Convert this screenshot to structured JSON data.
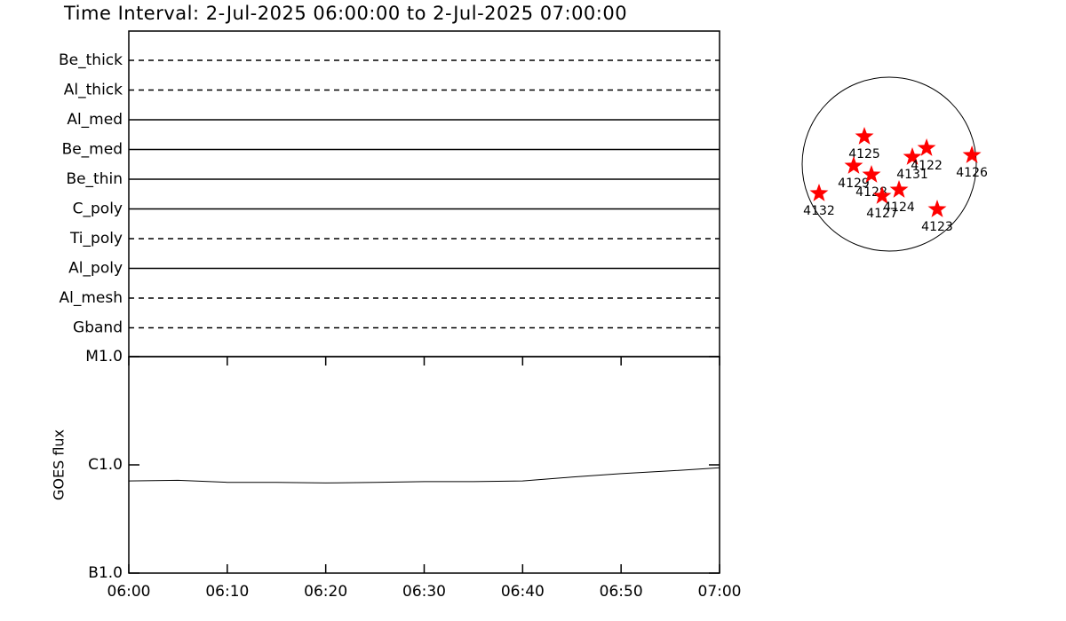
{
  "title": "Time Interval:  2-Jul-2025 06:00:00 to  2-Jul-2025 07:00:00",
  "chart_data": [
    {
      "type": "timeline",
      "categories": [
        "Be_thick",
        "Al_thick",
        "Al_med",
        "Be_med",
        "Be_thin",
        "C_poly",
        "Ti_poly",
        "Al_poly",
        "Al_mesh",
        "Gband"
      ],
      "styles": [
        "dashed",
        "dashed",
        "solid",
        "solid",
        "solid",
        "solid",
        "dashed",
        "solid",
        "dashed",
        "dashed"
      ]
    },
    {
      "type": "line",
      "ylabel": "GOES flux",
      "log_scale": true,
      "x": [
        "06:00",
        "06:05",
        "06:10",
        "06:15",
        "06:20",
        "06:25",
        "06:30",
        "06:35",
        "06:40",
        "06:45",
        "06:50",
        "06:55",
        "07:00"
      ],
      "values": [
        7.1e-07,
        7.2e-07,
        6.9e-07,
        6.9e-07,
        6.8e-07,
        6.9e-07,
        7e-07,
        7e-07,
        7.1e-07,
        7.7e-07,
        8.3e-07,
        8.8e-07,
        9.4e-07
      ],
      "xlim": [
        "06:00",
        "07:00"
      ],
      "xticks": [
        "06:00",
        "06:10",
        "06:20",
        "06:30",
        "06:40",
        "06:50",
        "07:00"
      ],
      "ylim": [
        1e-07,
        1e-05
      ],
      "yticks": [
        {
          "value": 1e-05,
          "label": "M1.0"
        },
        {
          "value": 1e-06,
          "label": "C1.0"
        },
        {
          "value": 1e-07,
          "label": "B1.0"
        }
      ],
      "color": "#000000"
    },
    {
      "type": "scatter",
      "labels": [
        "4125",
        "4129",
        "4128",
        "4127",
        "4124",
        "4131",
        "4122",
        "4126",
        "4123",
        "4132"
      ],
      "x": [
        -274,
        -392,
        -196,
        -78,
        108,
        255,
        412,
        912,
        529,
        -774
      ],
      "y": [
        304,
        -20,
        -118,
        -353,
        -284,
        78,
        176,
        98,
        -500,
        -323
      ],
      "xlim": [
        -960,
        960
      ],
      "ylim": [
        -960,
        960
      ],
      "color": "#ff0000"
    }
  ]
}
